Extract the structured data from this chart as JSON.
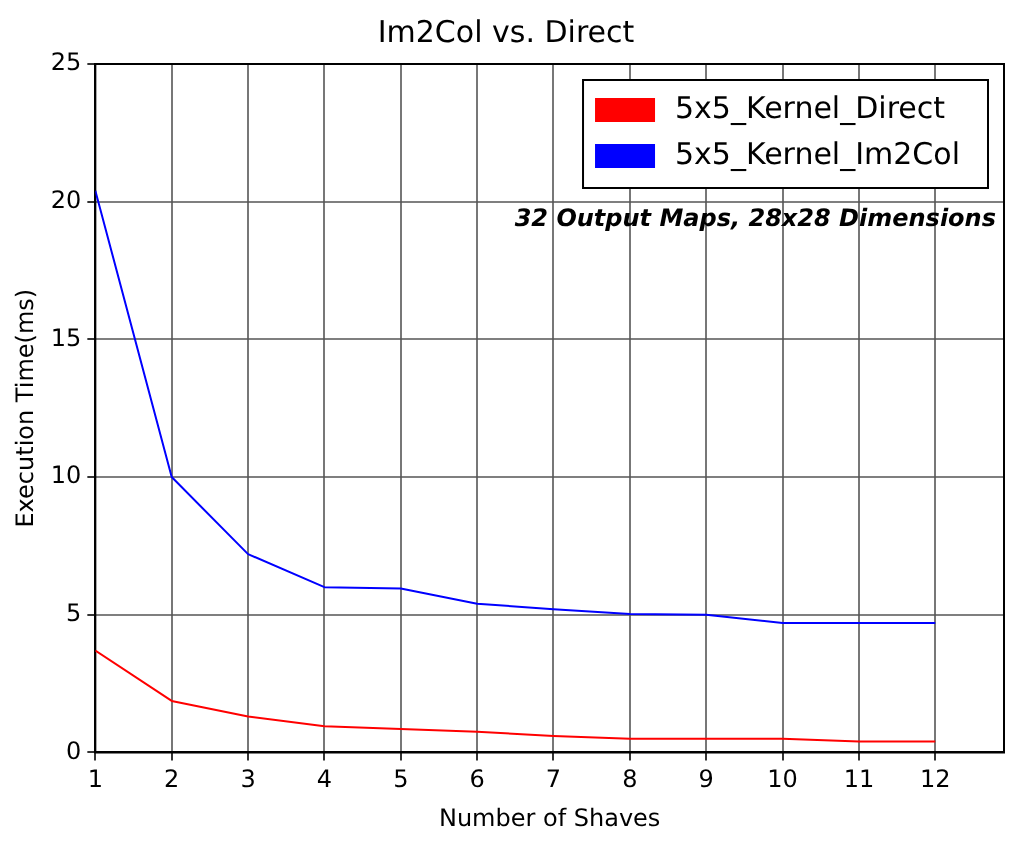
{
  "chart_data": {
    "type": "line",
    "title": "Im2Col vs. Direct",
    "xlabel": "Number of Shaves",
    "ylabel": "Execution Time(ms)",
    "x": [
      1,
      2,
      3,
      4,
      5,
      6,
      7,
      8,
      9,
      10,
      11,
      12
    ],
    "series": [
      {
        "name": "5x5_Kernel_Direct",
        "color": "#ff0000",
        "values": [
          3.7,
          1.87,
          1.3,
          0.95,
          0.85,
          0.75,
          0.6,
          0.5,
          0.5,
          0.5,
          0.4,
          0.4
        ]
      },
      {
        "name": "5x5_Kernel_Im2Col",
        "color": "#0000ff",
        "values": [
          20.4,
          10.0,
          7.2,
          6.0,
          5.95,
          5.4,
          5.2,
          5.03,
          5.0,
          4.7,
          4.7,
          4.7
        ]
      }
    ],
    "xlim": [
      1,
      12.9
    ],
    "xticks": [
      1,
      2,
      3,
      4,
      5,
      6,
      7,
      8,
      9,
      10,
      11,
      12
    ],
    "ylim": [
      0,
      25
    ],
    "yticks": [
      0,
      5,
      10,
      15,
      20,
      25
    ],
    "annotations": [
      "32 Output Maps, 28x28 Dimensions"
    ],
    "grid": true,
    "legend": "top right",
    "marker": "none",
    "line_style": "solid"
  }
}
